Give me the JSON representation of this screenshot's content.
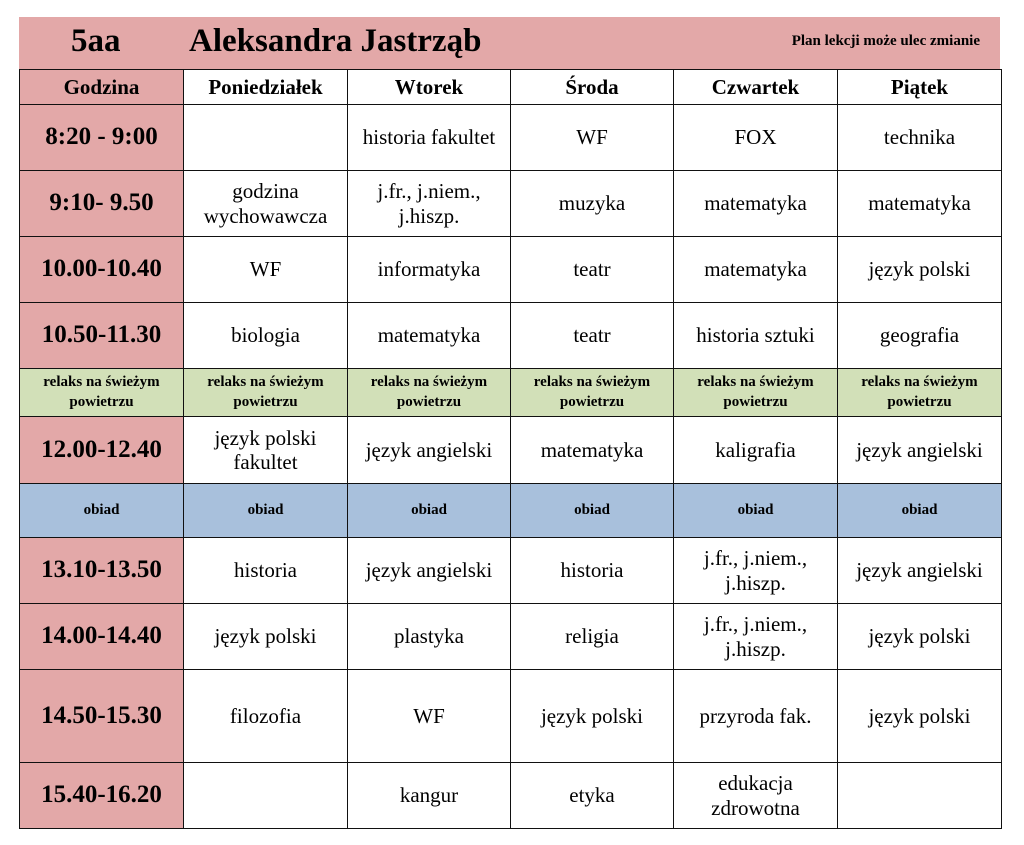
{
  "header": {
    "class": "5aa",
    "student": "Aleksandra Jastrząb",
    "note": "Plan lekcji może ulec zmianie"
  },
  "colors": {
    "time": "#e3a8a8",
    "relax": "#d2e0b8",
    "lunch": "#a8c0dc"
  },
  "columns": [
    "Godzina",
    "Poniedziałek",
    "Wtorek",
    "Środa",
    "Czwartek",
    "Piątek"
  ],
  "rows": [
    {
      "type": "lesson",
      "cells": [
        "8:20 - 9:00",
        "",
        "historia fakultet",
        "WF",
        "FOX",
        "technika"
      ]
    },
    {
      "type": "lesson",
      "cells": [
        "9:10- 9.50",
        "godzina wychowawcza",
        "j.fr., j.niem., j.hiszp.",
        "muzyka",
        "matematyka",
        "matematyka"
      ]
    },
    {
      "type": "lesson",
      "cells": [
        "10.00-10.40",
        "WF",
        "informatyka",
        "teatr",
        "matematyka",
        "język polski"
      ]
    },
    {
      "type": "lesson",
      "cells": [
        "10.50-11.30",
        "biologia",
        "matematyka",
        "teatr",
        "historia sztuki",
        "geografia"
      ]
    },
    {
      "type": "relax",
      "cells": [
        "relaks na świeżym powietrzu",
        "relaks na świeżym powietrzu",
        "relaks na świeżym powietrzu",
        "relaks na świeżym powietrzu",
        "relaks na świeżym powietrzu",
        "relaks na świeżym powietrzu"
      ]
    },
    {
      "type": "lesson",
      "cells": [
        "12.00-12.40",
        "język polski fakultet",
        "język angielski",
        "matematyka",
        "kaligrafia",
        "język angielski"
      ]
    },
    {
      "type": "lunch",
      "cells": [
        "obiad",
        "obiad",
        "obiad",
        "obiad",
        "obiad",
        "obiad"
      ]
    },
    {
      "type": "lesson",
      "cells": [
        "13.10-13.50",
        "historia",
        "język angielski",
        "historia",
        "j.fr., j.niem., j.hiszp.",
        "język angielski"
      ]
    },
    {
      "type": "lesson",
      "cells": [
        "14.00-14.40",
        "język polski",
        "plastyka",
        "religia",
        "j.fr., j.niem., j.hiszp.",
        "język polski"
      ]
    },
    {
      "type": "lesson",
      "cells": [
        "14.50-15.30",
        "filozofia",
        "WF",
        "język polski",
        "przyroda fak.",
        "język polski"
      ]
    },
    {
      "type": "lesson",
      "cells": [
        "15.40-16.20",
        "",
        "kangur",
        "etyka",
        "edukacja zdrowotna",
        ""
      ]
    }
  ]
}
